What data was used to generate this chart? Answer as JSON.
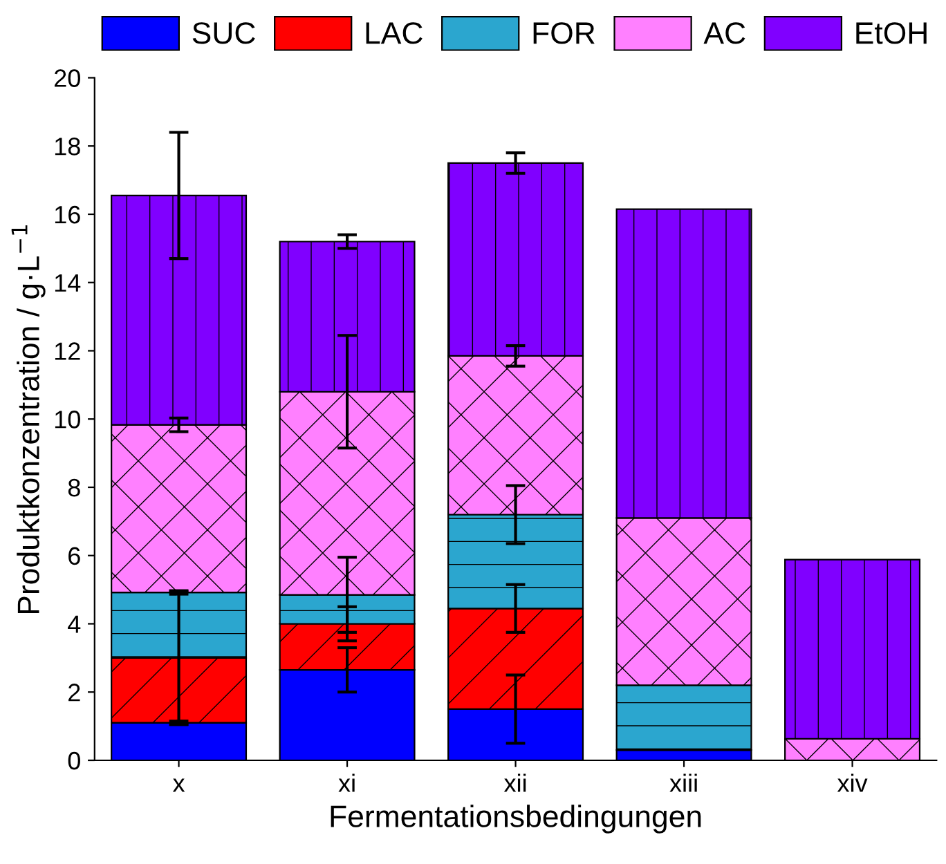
{
  "chart_data": {
    "type": "bar",
    "stacked": true,
    "xlabel": "Fermentationsbedingungen",
    "ylabel": "Produktkonzentration / g·L$^{−1}$",
    "categories": [
      "x",
      "xi",
      "xii",
      "xiii",
      "xiv"
    ],
    "series": [
      {
        "name": "SUC",
        "color": "#0000ff",
        "values": [
          1.1,
          2.65,
          1.5,
          0.3,
          null
        ],
        "errors": [
          0.05,
          0.65,
          1.0,
          null,
          null
        ]
      },
      {
        "name": "LAC",
        "color": "#ff0000",
        "values": [
          1.9,
          1.35,
          2.95,
          0,
          0
        ],
        "errors": [
          1.95,
          0.5,
          0.7,
          null,
          null
        ]
      },
      {
        "name": "FOR",
        "color": "#2ba6cf",
        "values": [
          1.92,
          0.85,
          2.75,
          1.9,
          0
        ],
        "errors": [
          0.05,
          1.1,
          0.85,
          null,
          null
        ]
      },
      {
        "name": "AC",
        "color": "#ff80ff",
        "values": [
          4.91,
          5.95,
          4.65,
          4.9,
          0.63
        ],
        "errors": [
          0.2,
          1.65,
          0.3,
          null,
          null
        ]
      },
      {
        "name": "EtOH",
        "color": "#8000ff",
        "values": [
          6.72,
          4.4,
          5.65,
          9.05,
          5.25
        ],
        "errors": [
          1.85,
          0.2,
          0.3,
          null,
          null
        ]
      }
    ],
    "ylim": [
      0,
      20
    ],
    "yticks": [
      0,
      2,
      4,
      6,
      8,
      10,
      12,
      14,
      16,
      18,
      20
    ],
    "grid": false,
    "legend": "top"
  }
}
